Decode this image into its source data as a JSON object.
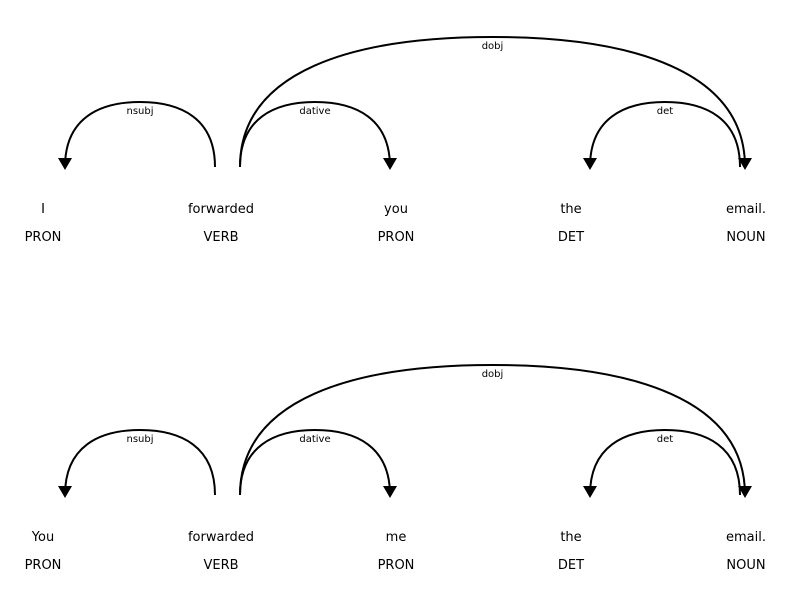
{
  "colors": {
    "background": "#ffffff",
    "ink": "#000000"
  },
  "sentences": [
    {
      "tokens": [
        {
          "text": "I",
          "tag": "PRON"
        },
        {
          "text": "forwarded",
          "tag": "VERB"
        },
        {
          "text": "you",
          "tag": "PRON"
        },
        {
          "text": "the",
          "tag": "DET"
        },
        {
          "text": "email.",
          "tag": "NOUN"
        }
      ],
      "arcs": [
        {
          "label": "nsubj",
          "start": 0,
          "end": 1,
          "dir": "left"
        },
        {
          "label": "dative",
          "start": 1,
          "end": 2,
          "dir": "right"
        },
        {
          "label": "det",
          "start": 3,
          "end": 4,
          "dir": "left"
        },
        {
          "label": "dobj",
          "start": 1,
          "end": 4,
          "dir": "right"
        }
      ]
    },
    {
      "tokens": [
        {
          "text": "You",
          "tag": "PRON"
        },
        {
          "text": "forwarded",
          "tag": "VERB"
        },
        {
          "text": "me",
          "tag": "PRON"
        },
        {
          "text": "the",
          "tag": "DET"
        },
        {
          "text": "email.",
          "tag": "NOUN"
        }
      ],
      "arcs": [
        {
          "label": "nsubj",
          "start": 0,
          "end": 1,
          "dir": "left"
        },
        {
          "label": "dative",
          "start": 1,
          "end": 2,
          "dir": "right"
        },
        {
          "label": "det",
          "start": 3,
          "end": 4,
          "dir": "left"
        },
        {
          "label": "dobj",
          "start": 1,
          "end": 4,
          "dir": "right"
        }
      ]
    }
  ]
}
